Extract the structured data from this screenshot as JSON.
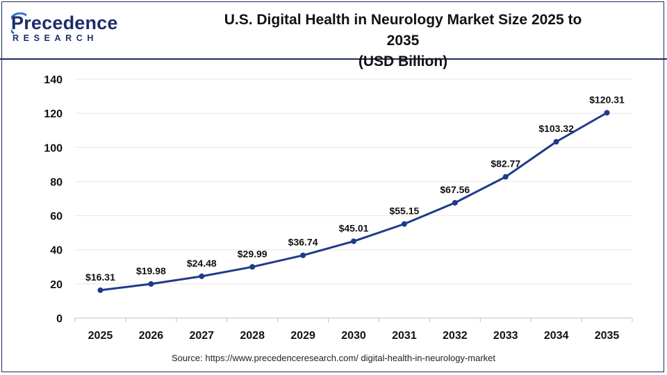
{
  "brand": {
    "logo_main": "Precedence",
    "logo_sub": "RESEARCH"
  },
  "title_line1": "U.S. Digital Health in Neurology Market Size 2025 to 2035",
  "title_line2": "(USD Billion)",
  "source": "Source: https://www.precedenceresearch.com/ digital-health-in-neurology-market",
  "colors": {
    "line": "#1f3a8a",
    "frame": "#1b2a5a",
    "grid": "#e6e6e6"
  },
  "chart_data": {
    "type": "line",
    "categories": [
      "2025",
      "2026",
      "2027",
      "2028",
      "2029",
      "2030",
      "2031",
      "2032",
      "2033",
      "2034",
      "2035"
    ],
    "values": [
      16.31,
      19.98,
      24.48,
      29.99,
      36.74,
      45.01,
      55.15,
      67.56,
      82.77,
      103.32,
      120.31
    ],
    "data_labels": [
      "$16.31",
      "$19.98",
      "$24.48",
      "$29.99",
      "$36.74",
      "$45.01",
      "$55.15",
      "$67.56",
      "$82.77",
      "$103.32",
      "$120.31"
    ],
    "y_ticks": [
      "0",
      "20",
      "40",
      "60",
      "80",
      "100",
      "120",
      "140"
    ],
    "ylim": [
      0,
      140
    ],
    "grid": true,
    "legend": "none"
  }
}
